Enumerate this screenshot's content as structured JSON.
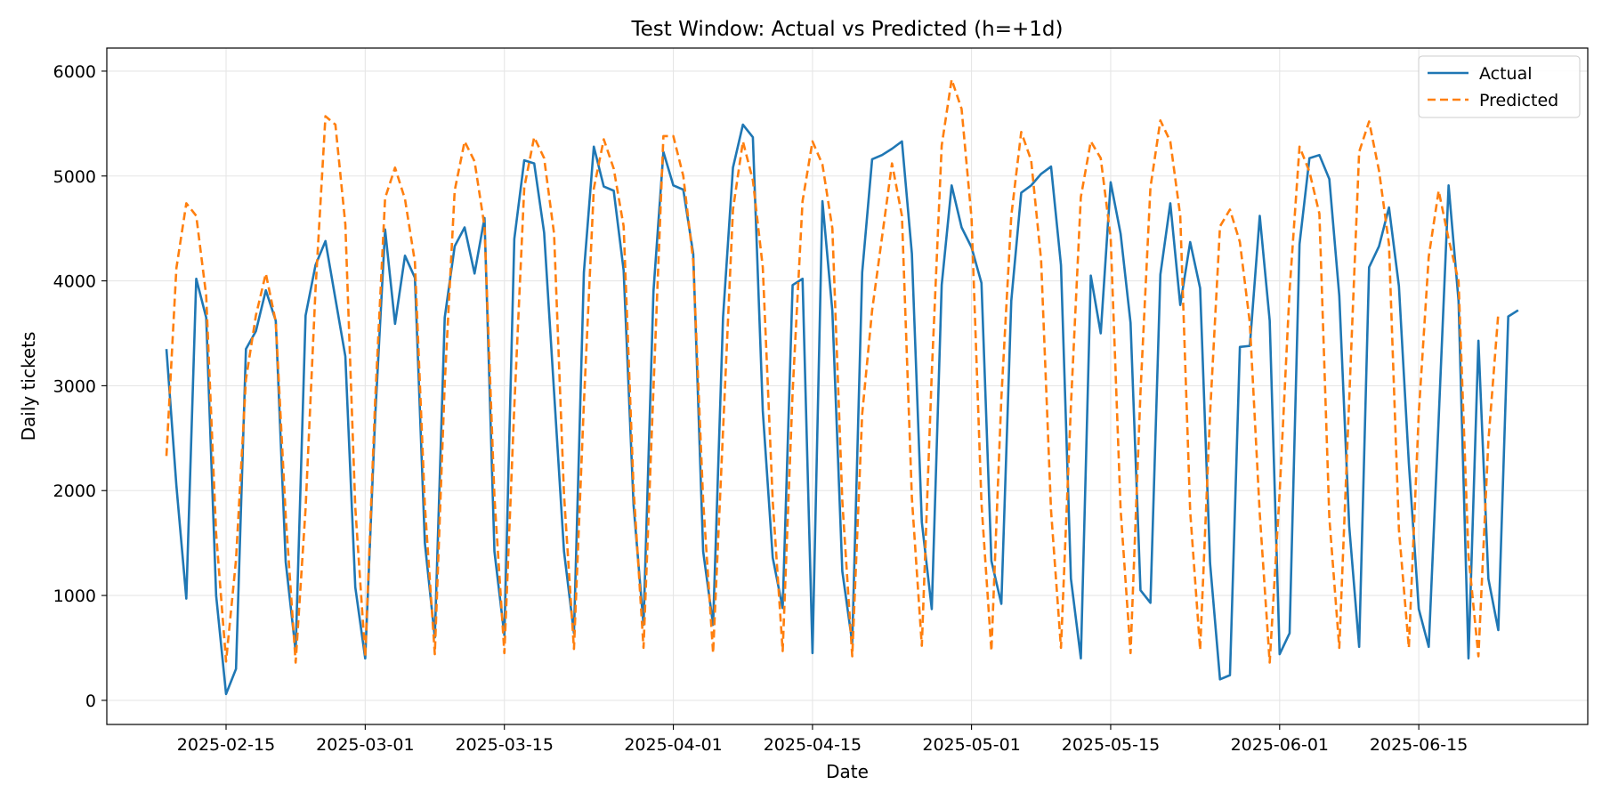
{
  "chart_data": {
    "type": "line",
    "title": "Test Window: Actual vs Predicted (h=+1d)",
    "xlabel": "Date",
    "ylabel": "Daily tickets",
    "x_start": "2025-02-09",
    "x_ticks": [
      "2025-02-15",
      "2025-03-01",
      "2025-03-15",
      "2025-04-01",
      "2025-04-15",
      "2025-05-01",
      "2025-05-15",
      "2025-06-01",
      "2025-06-15"
    ],
    "y_ticks": [
      0,
      1000,
      2000,
      3000,
      4000,
      5000,
      6000
    ],
    "ylim": [
      -230,
      6220
    ],
    "xlim": [
      "2025-02-03",
      "2025-07-02"
    ],
    "grid": true,
    "legend_position": "top-right",
    "colors": {
      "Actual": "#1f77b4",
      "Predicted": "#ff7f0e"
    },
    "series": [
      {
        "name": "Actual",
        "style": "solid",
        "values": [
          3350,
          2050,
          970,
          4020,
          3650,
          1000,
          60,
          300,
          3350,
          3520,
          3910,
          3620,
          1320,
          470,
          3670,
          4150,
          4380,
          3830,
          3280,
          1080,
          400,
          2700,
          4490,
          3590,
          4240,
          4030,
          1500,
          600,
          3650,
          4330,
          4510,
          4070,
          4600,
          1420,
          620,
          4400,
          5150,
          5120,
          4460,
          2940,
          1420,
          640,
          4080,
          5280,
          4900,
          4860,
          4100,
          1860,
          720,
          3900,
          5230,
          4910,
          4870,
          4260,
          1420,
          720,
          3650,
          5080,
          5490,
          5370,
          2760,
          1360,
          880,
          3960,
          4020,
          450,
          4760,
          3710,
          1230,
          550,
          4080,
          5160,
          5200,
          5260,
          5330,
          4260,
          1700,
          870,
          3960,
          4910,
          4510,
          4320,
          3980,
          1330,
          920,
          3810,
          4840,
          4910,
          5020,
          5090,
          4150,
          1160,
          400,
          4050,
          3500,
          4940,
          4450,
          3600,
          1050,
          930,
          4060,
          4740,
          3770,
          4370,
          3930,
          1310,
          200,
          240,
          3370,
          3380,
          4620,
          3620,
          440,
          640,
          4350,
          5170,
          5200,
          4970,
          3860,
          1660,
          510,
          4130,
          4330,
          4700,
          3950,
          2260,
          870,
          510,
          2680,
          4910,
          3810,
          400,
          3430,
          1160,
          670,
          3660,
          3720
        ]
      },
      {
        "name": "Predicted",
        "style": "dashed",
        "values": [
          2330,
          4120,
          4740,
          4620,
          3860,
          1590,
          370,
          1340,
          3060,
          3670,
          4070,
          3610,
          1760,
          360,
          1830,
          3920,
          5570,
          5490,
          4540,
          1840,
          420,
          2860,
          4790,
          5080,
          4780,
          4180,
          1860,
          440,
          3020,
          4860,
          5330,
          5140,
          4520,
          1940,
          450,
          2800,
          4890,
          5370,
          5170,
          4450,
          1960,
          490,
          2830,
          4880,
          5350,
          5070,
          4520,
          2020,
          500,
          2970,
          5380,
          5380,
          5000,
          4190,
          1900,
          450,
          2570,
          4680,
          5330,
          4960,
          4130,
          1900,
          470,
          2940,
          4760,
          5330,
          5110,
          4500,
          1900,
          420,
          2730,
          3720,
          4420,
          5120,
          4620,
          1930,
          520,
          3120,
          5290,
          5920,
          5640,
          4600,
          1880,
          470,
          2880,
          4620,
          5420,
          5150,
          4200,
          1810,
          500,
          2810,
          4800,
          5330,
          5170,
          4410,
          1820,
          450,
          2940,
          4890,
          5530,
          5330,
          4620,
          1800,
          480,
          2730,
          4520,
          4680,
          4370,
          3600,
          1780,
          360,
          1980,
          3910,
          5280,
          5040,
          4640,
          1740,
          500,
          2870,
          5230,
          5520,
          5050,
          4350,
          1630,
          500,
          2740,
          4230,
          4860,
          4400,
          4000,
          1380,
          420,
          2470,
          3690
        ]
      }
    ]
  }
}
